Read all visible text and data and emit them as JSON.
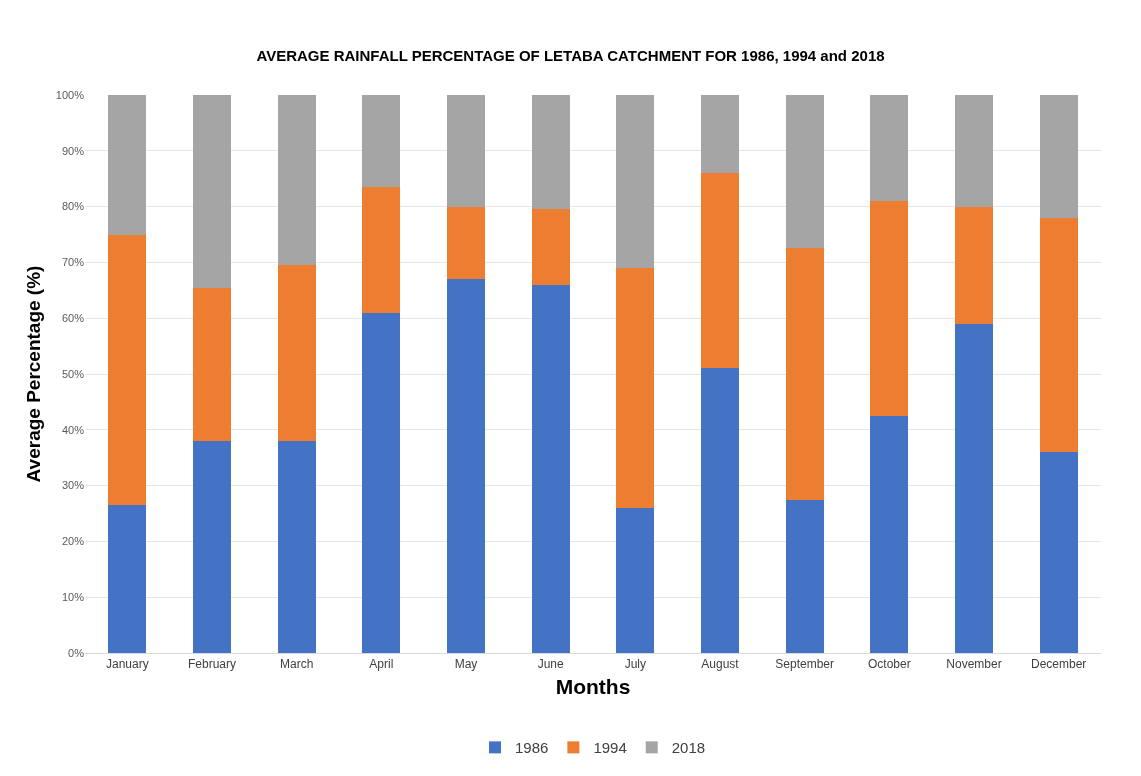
{
  "chart_data": {
    "type": "bar",
    "title": "AVERAGE RAINFALL PERCENTAGE OF LETABA CATCHMENT FOR 1986, 1994 and 2018",
    "xlabel": "Months",
    "ylabel": "Average Percentage (%)",
    "categories": [
      "January",
      "February",
      "March",
      "April",
      "May",
      "June",
      "July",
      "August",
      "September",
      "October",
      "November",
      "December"
    ],
    "series": [
      {
        "name": "1986",
        "color": "#4472c4",
        "values": [
          26.5,
          38,
          38,
          61,
          67,
          66,
          26,
          51,
          27.5,
          42.5,
          59,
          36
        ]
      },
      {
        "name": "1994",
        "color": "#ed7d31",
        "values": [
          48.5,
          27.5,
          31.5,
          22.5,
          13,
          13.5,
          43,
          35,
          45,
          38.5,
          21,
          42
        ]
      },
      {
        "name": "2018",
        "color": "#a5a5a5",
        "values": [
          25,
          34.5,
          30.5,
          16.5,
          20,
          20.5,
          31,
          14,
          27.5,
          19,
          20,
          22
        ]
      }
    ],
    "stacked": true,
    "ylim": [
      0,
      100
    ],
    "yticks": [
      {
        "value": 0,
        "label": "0%"
      },
      {
        "value": 10,
        "label": "10%"
      },
      {
        "value": 20,
        "label": "20%"
      },
      {
        "value": 30,
        "label": "30%"
      },
      {
        "value": 40,
        "label": "40%"
      },
      {
        "value": 50,
        "label": "50%"
      },
      {
        "value": 60,
        "label": "60%"
      },
      {
        "value": 70,
        "label": "70%"
      },
      {
        "value": 80,
        "label": "80%"
      },
      {
        "value": 90,
        "label": "90%"
      },
      {
        "value": 100,
        "label": "100%"
      }
    ],
    "grid": "y",
    "legend": "bottom"
  }
}
